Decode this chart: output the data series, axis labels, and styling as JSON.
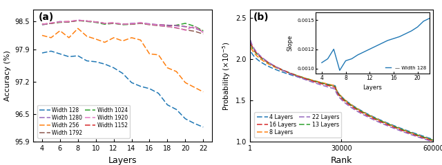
{
  "panel_a": {
    "title": "(a)",
    "xlabel": "Layers",
    "ylabel": "Accuracy (%)",
    "x": [
      4,
      5,
      6,
      7,
      8,
      9,
      10,
      11,
      12,
      13,
      14,
      15,
      16,
      17,
      18,
      19,
      20,
      21,
      22
    ],
    "ylim": [
      95.9,
      98.75
    ],
    "yticks": [
      95.9,
      96.5,
      97.2,
      97.9,
      98.5
    ],
    "yticklabels": [
      "95.9",
      "96.5",
      "97.2",
      "97.9",
      "98.5"
    ],
    "xticks": [
      4,
      6,
      8,
      10,
      12,
      14,
      16,
      18,
      20,
      22
    ],
    "series": {
      "Width 128": [
        97.82,
        97.86,
        97.8,
        97.74,
        97.76,
        97.65,
        97.63,
        97.58,
        97.5,
        97.38,
        97.18,
        97.1,
        97.05,
        96.95,
        96.7,
        96.6,
        96.4,
        96.3,
        96.22
      ],
      "Width 256": [
        98.2,
        98.15,
        98.3,
        98.15,
        98.35,
        98.18,
        98.12,
        98.05,
        98.15,
        98.08,
        98.15,
        98.1,
        97.8,
        97.78,
        97.5,
        97.42,
        97.18,
        97.08,
        96.98
      ],
      "Width 1024": [
        98.43,
        98.46,
        98.48,
        98.49,
        98.52,
        98.5,
        98.48,
        98.44,
        98.46,
        98.43,
        98.44,
        98.46,
        98.44,
        98.42,
        98.4,
        98.42,
        98.46,
        98.4,
        98.3
      ],
      "Width 1152": [
        98.44,
        98.46,
        98.49,
        98.5,
        98.52,
        98.51,
        98.49,
        98.46,
        98.47,
        98.44,
        98.45,
        98.47,
        98.44,
        98.43,
        98.42,
        98.41,
        98.39,
        98.36,
        98.29
      ],
      "Width 1280": [
        98.43,
        98.46,
        98.5,
        98.49,
        98.53,
        98.51,
        98.49,
        98.46,
        98.47,
        98.44,
        98.46,
        98.47,
        98.45,
        98.43,
        98.42,
        98.41,
        98.39,
        98.36,
        98.28
      ],
      "Width 1792": [
        98.44,
        98.46,
        98.49,
        98.49,
        98.52,
        98.51,
        98.49,
        98.46,
        98.46,
        98.44,
        98.44,
        98.46,
        98.43,
        98.41,
        98.39,
        98.36,
        98.32,
        98.29,
        98.23
      ],
      "Width 1920": [
        98.44,
        98.47,
        98.49,
        98.5,
        98.53,
        98.51,
        98.49,
        98.46,
        98.47,
        98.44,
        98.45,
        98.47,
        98.44,
        98.42,
        98.39,
        98.37,
        98.31,
        98.4,
        98.26
      ]
    },
    "colors": {
      "Width 128": "#1f77b4",
      "Width 256": "#ff7f0e",
      "Width 1024": "#2ca02c",
      "Width 1152": "#d62728",
      "Width 1280": "#9467bd",
      "Width 1792": "#8c564b",
      "Width 1920": "#e377c2"
    },
    "legend_col1": [
      "Width 128",
      "Width 256",
      "Width 1024",
      "Width 1152"
    ],
    "legend_col2": [
      "Width 1280",
      "Width 1792",
      "Width 1920"
    ]
  },
  "panel_b": {
    "title": "(b)",
    "xlabel": "Rank",
    "ylabel": "Probability ($\\times10^{-5}$)",
    "xlim": [
      1,
      60000
    ],
    "ylim": [
      1.0,
      2.6
    ],
    "xticks": [
      1,
      30000,
      60000
    ],
    "xticklabels": [
      "1",
      "30000",
      "60000"
    ],
    "yticks": [
      1.0,
      1.5,
      2.0,
      2.5
    ],
    "yticklabels": [
      "1.0",
      "1.5",
      "2.0",
      "2.5"
    ],
    "colors": {
      "4 Layers": "#1f77b4",
      "8 Layers": "#ff7f0e",
      "13 Layers": "#2ca02c",
      "16 Layers": "#d62728",
      "22 Layers": "#9467bd"
    },
    "legend_col1": [
      "4 Layers",
      "8 Layers",
      "13 Layers"
    ],
    "legend_col2": [
      "16 Layers",
      "22 Layers"
    ]
  },
  "inset": {
    "xlabel": "Layers",
    "ylabel": "Slope",
    "xlim": [
      3,
      22
    ],
    "ylim": [
      0.00095,
      0.00158
    ],
    "xticks": [
      4,
      8,
      12,
      16,
      20
    ],
    "yticks": [
      0.001,
      0.0012,
      0.0015
    ],
    "yticklabels": [
      "0.0010",
      "0.0012",
      "0.0015"
    ],
    "x": [
      4,
      5,
      6,
      7,
      8,
      9,
      10,
      11,
      12,
      13,
      14,
      15,
      16,
      17,
      18,
      19,
      20,
      21,
      22
    ],
    "y": [
      0.00106,
      0.0011,
      0.0012,
      0.00098,
      0.00108,
      0.0011,
      0.00114,
      0.00117,
      0.0012,
      0.00123,
      0.00126,
      0.00129,
      0.00131,
      0.00133,
      0.00136,
      0.00139,
      0.00143,
      0.00149,
      0.00152
    ],
    "color": "#1f77b4",
    "label": "Width 128"
  }
}
